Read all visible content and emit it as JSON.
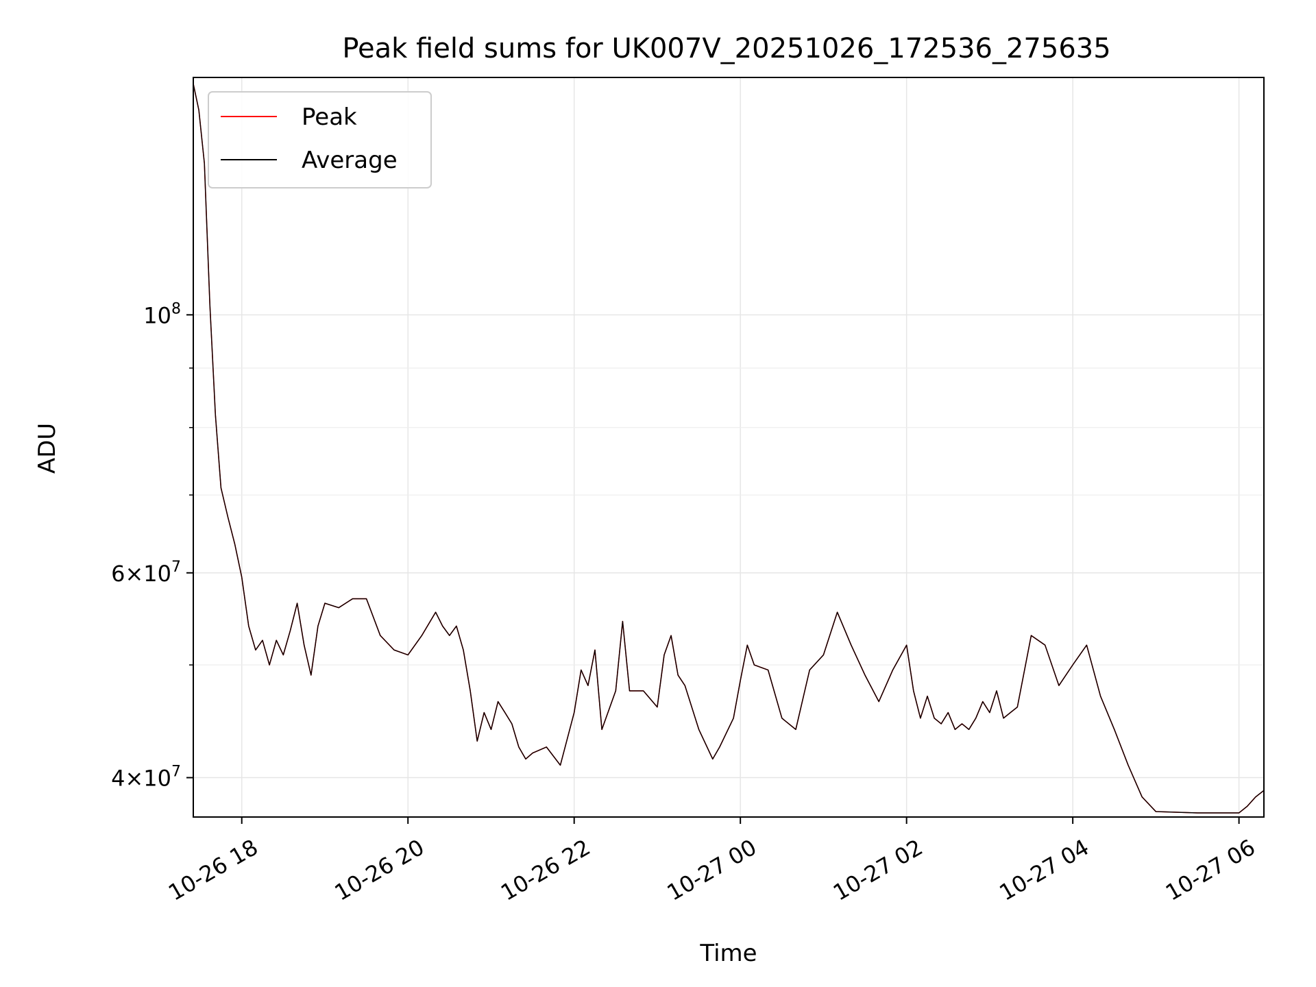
{
  "chart_data": {
    "type": "line",
    "title": "Peak field sums for UK007V_20251026_172536_275635",
    "xlabel": "Time",
    "ylabel": "ADU",
    "y_scale": "log",
    "grid": true,
    "legend_position": "top-left",
    "x_range": [
      "2025-10-26 17:25",
      "2025-10-27 06:18"
    ],
    "y_range": [
      37000000,
      160000000
    ],
    "x_ticks": [
      {
        "value": "2025-10-26 18:00",
        "label": "10-26 18"
      },
      {
        "value": "2025-10-26 20:00",
        "label": "10-26 20"
      },
      {
        "value": "2025-10-26 22:00",
        "label": "10-26 22"
      },
      {
        "value": "2025-10-27 00:00",
        "label": "10-27 00"
      },
      {
        "value": "2025-10-27 02:00",
        "label": "10-27 02"
      },
      {
        "value": "2025-10-27 04:00",
        "label": "10-27 04"
      },
      {
        "value": "2025-10-27 06:00",
        "label": "10-27 06"
      }
    ],
    "y_ticks": [
      {
        "value": 40000000,
        "base": "4",
        "exp": "7"
      },
      {
        "value": 60000000,
        "base": "6",
        "exp": "7"
      },
      {
        "value": 100000000,
        "base": "",
        "exp": "8"
      }
    ],
    "y_minor_ticks": [
      50000000,
      70000000,
      80000000,
      90000000
    ],
    "series": [
      {
        "name": "Peak",
        "color": "#ff0000",
        "points": [
          [
            "2025-10-26 17:25",
            158000000
          ],
          [
            "2025-10-26 17:29",
            150000000
          ],
          [
            "2025-10-26 17:33",
            135000000
          ],
          [
            "2025-10-26 17:37",
            102000000
          ],
          [
            "2025-10-26 17:41",
            82000000
          ],
          [
            "2025-10-26 17:45",
            71000000
          ],
          [
            "2025-10-26 17:50",
            67000000
          ],
          [
            "2025-10-26 17:55",
            63500000
          ],
          [
            "2025-10-26 18:00",
            59500000
          ],
          [
            "2025-10-26 18:05",
            54000000
          ],
          [
            "2025-10-26 18:10",
            51500000
          ],
          [
            "2025-10-26 18:15",
            52500000
          ],
          [
            "2025-10-26 18:20",
            50000000
          ],
          [
            "2025-10-26 18:25",
            52500000
          ],
          [
            "2025-10-26 18:30",
            51000000
          ],
          [
            "2025-10-26 18:35",
            53500000
          ],
          [
            "2025-10-26 18:40",
            56500000
          ],
          [
            "2025-10-26 18:45",
            52000000
          ],
          [
            "2025-10-26 18:50",
            49000000
          ],
          [
            "2025-10-26 18:55",
            54000000
          ],
          [
            "2025-10-26 19:00",
            56500000
          ],
          [
            "2025-10-26 19:10",
            56000000
          ],
          [
            "2025-10-26 19:20",
            57000000
          ],
          [
            "2025-10-26 19:30",
            57000000
          ],
          [
            "2025-10-26 19:40",
            53000000
          ],
          [
            "2025-10-26 19:50",
            51500000
          ],
          [
            "2025-10-26 20:00",
            51000000
          ],
          [
            "2025-10-26 20:10",
            53000000
          ],
          [
            "2025-10-26 20:20",
            55500000
          ],
          [
            "2025-10-26 20:25",
            54000000
          ],
          [
            "2025-10-26 20:30",
            53000000
          ],
          [
            "2025-10-26 20:35",
            54000000
          ],
          [
            "2025-10-26 20:40",
            51500000
          ],
          [
            "2025-10-26 20:45",
            47500000
          ],
          [
            "2025-10-26 20:50",
            43000000
          ],
          [
            "2025-10-26 20:55",
            45500000
          ],
          [
            "2025-10-26 21:00",
            44000000
          ],
          [
            "2025-10-26 21:05",
            46500000
          ],
          [
            "2025-10-26 21:10",
            45500000
          ],
          [
            "2025-10-26 21:15",
            44500000
          ],
          [
            "2025-10-26 21:20",
            42500000
          ],
          [
            "2025-10-26 21:25",
            41500000
          ],
          [
            "2025-10-26 21:30",
            42000000
          ],
          [
            "2025-10-26 21:40",
            42500000
          ],
          [
            "2025-10-26 21:50",
            41000000
          ],
          [
            "2025-10-26 22:00",
            45500000
          ],
          [
            "2025-10-26 22:05",
            49500000
          ],
          [
            "2025-10-26 22:10",
            48000000
          ],
          [
            "2025-10-26 22:15",
            51500000
          ],
          [
            "2025-10-26 22:20",
            44000000
          ],
          [
            "2025-10-26 22:30",
            47500000
          ],
          [
            "2025-10-26 22:35",
            54500000
          ],
          [
            "2025-10-26 22:40",
            47500000
          ],
          [
            "2025-10-26 22:50",
            47500000
          ],
          [
            "2025-10-26 23:00",
            46000000
          ],
          [
            "2025-10-26 23:05",
            51000000
          ],
          [
            "2025-10-26 23:10",
            53000000
          ],
          [
            "2025-10-26 23:15",
            49000000
          ],
          [
            "2025-10-26 23:20",
            48000000
          ],
          [
            "2025-10-26 23:30",
            44000000
          ],
          [
            "2025-10-26 23:40",
            41500000
          ],
          [
            "2025-10-26 23:45",
            42500000
          ],
          [
            "2025-10-26 23:55",
            45000000
          ],
          [
            "2025-10-27 00:00",
            48500000
          ],
          [
            "2025-10-27 00:05",
            52000000
          ],
          [
            "2025-10-27 00:10",
            50000000
          ],
          [
            "2025-10-27 00:20",
            49500000
          ],
          [
            "2025-10-27 00:30",
            45000000
          ],
          [
            "2025-10-27 00:40",
            44000000
          ],
          [
            "2025-10-27 00:50",
            49500000
          ],
          [
            "2025-10-27 01:00",
            51000000
          ],
          [
            "2025-10-27 01:10",
            55500000
          ],
          [
            "2025-10-27 01:20",
            52000000
          ],
          [
            "2025-10-27 01:30",
            49000000
          ],
          [
            "2025-10-27 01:40",
            46500000
          ],
          [
            "2025-10-27 01:50",
            49500000
          ],
          [
            "2025-10-27 02:00",
            52000000
          ],
          [
            "2025-10-27 02:05",
            47500000
          ],
          [
            "2025-10-27 02:10",
            45000000
          ],
          [
            "2025-10-27 02:15",
            47000000
          ],
          [
            "2025-10-27 02:20",
            45000000
          ],
          [
            "2025-10-27 02:25",
            44500000
          ],
          [
            "2025-10-27 02:30",
            45500000
          ],
          [
            "2025-10-27 02:35",
            44000000
          ],
          [
            "2025-10-27 02:40",
            44500000
          ],
          [
            "2025-10-27 02:45",
            44000000
          ],
          [
            "2025-10-27 02:50",
            45000000
          ],
          [
            "2025-10-27 02:55",
            46500000
          ],
          [
            "2025-10-27 03:00",
            45500000
          ],
          [
            "2025-10-27 03:05",
            47500000
          ],
          [
            "2025-10-27 03:10",
            45000000
          ],
          [
            "2025-10-27 03:15",
            45500000
          ],
          [
            "2025-10-27 03:20",
            46000000
          ],
          [
            "2025-10-27 03:30",
            53000000
          ],
          [
            "2025-10-27 03:40",
            52000000
          ],
          [
            "2025-10-27 03:50",
            48000000
          ],
          [
            "2025-10-27 04:00",
            50000000
          ],
          [
            "2025-10-27 04:10",
            52000000
          ],
          [
            "2025-10-27 04:20",
            47000000
          ],
          [
            "2025-10-27 04:30",
            44000000
          ],
          [
            "2025-10-27 04:40",
            41000000
          ],
          [
            "2025-10-27 04:50",
            38500000
          ],
          [
            "2025-10-27 05:00",
            37400000
          ],
          [
            "2025-10-27 05:30",
            37300000
          ],
          [
            "2025-10-27 06:00",
            37300000
          ],
          [
            "2025-10-27 06:06",
            37800000
          ],
          [
            "2025-10-27 06:12",
            38500000
          ],
          [
            "2025-10-27 06:18",
            39000000
          ]
        ]
      },
      {
        "name": "Average",
        "color": "#000000",
        "points": [
          [
            "2025-10-26 17:25",
            158000000
          ],
          [
            "2025-10-26 17:29",
            150000000
          ],
          [
            "2025-10-26 17:33",
            135000000
          ],
          [
            "2025-10-26 17:37",
            102000000
          ],
          [
            "2025-10-26 17:41",
            82000000
          ],
          [
            "2025-10-26 17:45",
            71000000
          ],
          [
            "2025-10-26 17:50",
            67000000
          ],
          [
            "2025-10-26 17:55",
            63500000
          ],
          [
            "2025-10-26 18:00",
            59500000
          ],
          [
            "2025-10-26 18:05",
            54000000
          ],
          [
            "2025-10-26 18:10",
            51500000
          ],
          [
            "2025-10-26 18:15",
            52500000
          ],
          [
            "2025-10-26 18:20",
            50000000
          ],
          [
            "2025-10-26 18:25",
            52500000
          ],
          [
            "2025-10-26 18:30",
            51000000
          ],
          [
            "2025-10-26 18:35",
            53500000
          ],
          [
            "2025-10-26 18:40",
            56500000
          ],
          [
            "2025-10-26 18:45",
            52000000
          ],
          [
            "2025-10-26 18:50",
            49000000
          ],
          [
            "2025-10-26 18:55",
            54000000
          ],
          [
            "2025-10-26 19:00",
            56500000
          ],
          [
            "2025-10-26 19:10",
            56000000
          ],
          [
            "2025-10-26 19:20",
            57000000
          ],
          [
            "2025-10-26 19:30",
            57000000
          ],
          [
            "2025-10-26 19:40",
            53000000
          ],
          [
            "2025-10-26 19:50",
            51500000
          ],
          [
            "2025-10-26 20:00",
            51000000
          ],
          [
            "2025-10-26 20:10",
            53000000
          ],
          [
            "2025-10-26 20:20",
            55500000
          ],
          [
            "2025-10-26 20:25",
            54000000
          ],
          [
            "2025-10-26 20:30",
            53000000
          ],
          [
            "2025-10-26 20:35",
            54000000
          ],
          [
            "2025-10-26 20:40",
            51500000
          ],
          [
            "2025-10-26 20:45",
            47500000
          ],
          [
            "2025-10-26 20:50",
            43000000
          ],
          [
            "2025-10-26 20:55",
            45500000
          ],
          [
            "2025-10-26 21:00",
            44000000
          ],
          [
            "2025-10-26 21:05",
            46500000
          ],
          [
            "2025-10-26 21:10",
            45500000
          ],
          [
            "2025-10-26 21:15",
            44500000
          ],
          [
            "2025-10-26 21:20",
            42500000
          ],
          [
            "2025-10-26 21:25",
            41500000
          ],
          [
            "2025-10-26 21:30",
            42000000
          ],
          [
            "2025-10-26 21:40",
            42500000
          ],
          [
            "2025-10-26 21:50",
            41000000
          ],
          [
            "2025-10-26 22:00",
            45500000
          ],
          [
            "2025-10-26 22:05",
            49500000
          ],
          [
            "2025-10-26 22:10",
            48000000
          ],
          [
            "2025-10-26 22:15",
            51500000
          ],
          [
            "2025-10-26 22:20",
            44000000
          ],
          [
            "2025-10-26 22:30",
            47500000
          ],
          [
            "2025-10-26 22:35",
            54500000
          ],
          [
            "2025-10-26 22:40",
            47500000
          ],
          [
            "2025-10-26 22:50",
            47500000
          ],
          [
            "2025-10-26 23:00",
            46000000
          ],
          [
            "2025-10-26 23:05",
            51000000
          ],
          [
            "2025-10-26 23:10",
            53000000
          ],
          [
            "2025-10-26 23:15",
            49000000
          ],
          [
            "2025-10-26 23:20",
            48000000
          ],
          [
            "2025-10-26 23:30",
            44000000
          ],
          [
            "2025-10-26 23:40",
            41500000
          ],
          [
            "2025-10-26 23:45",
            42500000
          ],
          [
            "2025-10-26 23:55",
            45000000
          ],
          [
            "2025-10-27 00:00",
            48500000
          ],
          [
            "2025-10-27 00:05",
            52000000
          ],
          [
            "2025-10-27 00:10",
            50000000
          ],
          [
            "2025-10-27 00:20",
            49500000
          ],
          [
            "2025-10-27 00:30",
            45000000
          ],
          [
            "2025-10-27 00:40",
            44000000
          ],
          [
            "2025-10-27 00:50",
            49500000
          ],
          [
            "2025-10-27 01:00",
            51000000
          ],
          [
            "2025-10-27 01:10",
            55500000
          ],
          [
            "2025-10-27 01:20",
            52000000
          ],
          [
            "2025-10-27 01:30",
            49000000
          ],
          [
            "2025-10-27 01:40",
            46500000
          ],
          [
            "2025-10-27 01:50",
            49500000
          ],
          [
            "2025-10-27 02:00",
            52000000
          ],
          [
            "2025-10-27 02:05",
            47500000
          ],
          [
            "2025-10-27 02:10",
            45000000
          ],
          [
            "2025-10-27 02:15",
            47000000
          ],
          [
            "2025-10-27 02:20",
            45000000
          ],
          [
            "2025-10-27 02:25",
            44500000
          ],
          [
            "2025-10-27 02:30",
            45500000
          ],
          [
            "2025-10-27 02:35",
            44000000
          ],
          [
            "2025-10-27 02:40",
            44500000
          ],
          [
            "2025-10-27 02:45",
            44000000
          ],
          [
            "2025-10-27 02:50",
            45000000
          ],
          [
            "2025-10-27 02:55",
            46500000
          ],
          [
            "2025-10-27 03:00",
            45500000
          ],
          [
            "2025-10-27 03:05",
            47500000
          ],
          [
            "2025-10-27 03:10",
            45000000
          ],
          [
            "2025-10-27 03:15",
            45500000
          ],
          [
            "2025-10-27 03:20",
            46000000
          ],
          [
            "2025-10-27 03:30",
            53000000
          ],
          [
            "2025-10-27 03:40",
            52000000
          ],
          [
            "2025-10-27 03:50",
            48000000
          ],
          [
            "2025-10-27 04:00",
            50000000
          ],
          [
            "2025-10-27 04:10",
            52000000
          ],
          [
            "2025-10-27 04:20",
            47000000
          ],
          [
            "2025-10-27 04:30",
            44000000
          ],
          [
            "2025-10-27 04:40",
            41000000
          ],
          [
            "2025-10-27 04:50",
            38500000
          ],
          [
            "2025-10-27 05:00",
            37400000
          ],
          [
            "2025-10-27 05:30",
            37300000
          ],
          [
            "2025-10-27 06:00",
            37300000
          ],
          [
            "2025-10-27 06:06",
            37800000
          ],
          [
            "2025-10-27 06:12",
            38500000
          ],
          [
            "2025-10-27 06:18",
            39000000
          ]
        ]
      }
    ]
  }
}
